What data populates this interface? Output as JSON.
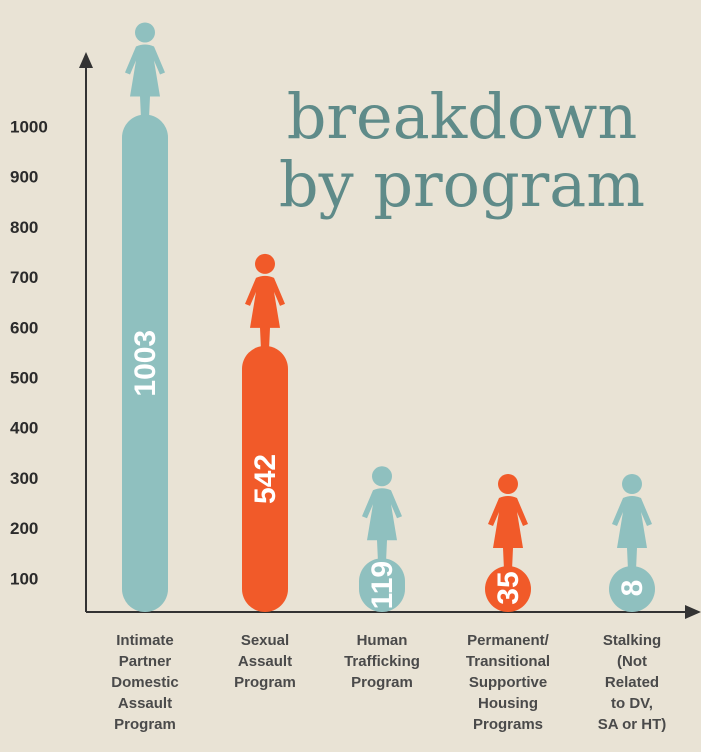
{
  "chart_data": {
    "type": "bar",
    "title": [
      "breakdown",
      "by program"
    ],
    "categories": [
      "Intimate\nPartner\nDomestic\nAssault\nProgram",
      "Sexual\nAssault\nProgram",
      "Human\nTrafficking\nProgram",
      "Permanent/\nTransitional\nSupportive\nHousing\nPrograms",
      "Stalking\n(Not\nRelated\nto DV,\nSA or HT)"
    ],
    "values": [
      1003,
      542,
      119,
      35,
      8
    ],
    "colors": [
      "#8fc0bf",
      "#f15a29",
      "#8fc0bf",
      "#f15a29",
      "#8fc0bf"
    ],
    "ylim": [
      0,
      1000
    ],
    "yticks": [
      100,
      200,
      300,
      400,
      500,
      600,
      700,
      800,
      900,
      1000
    ],
    "grid": false
  }
}
